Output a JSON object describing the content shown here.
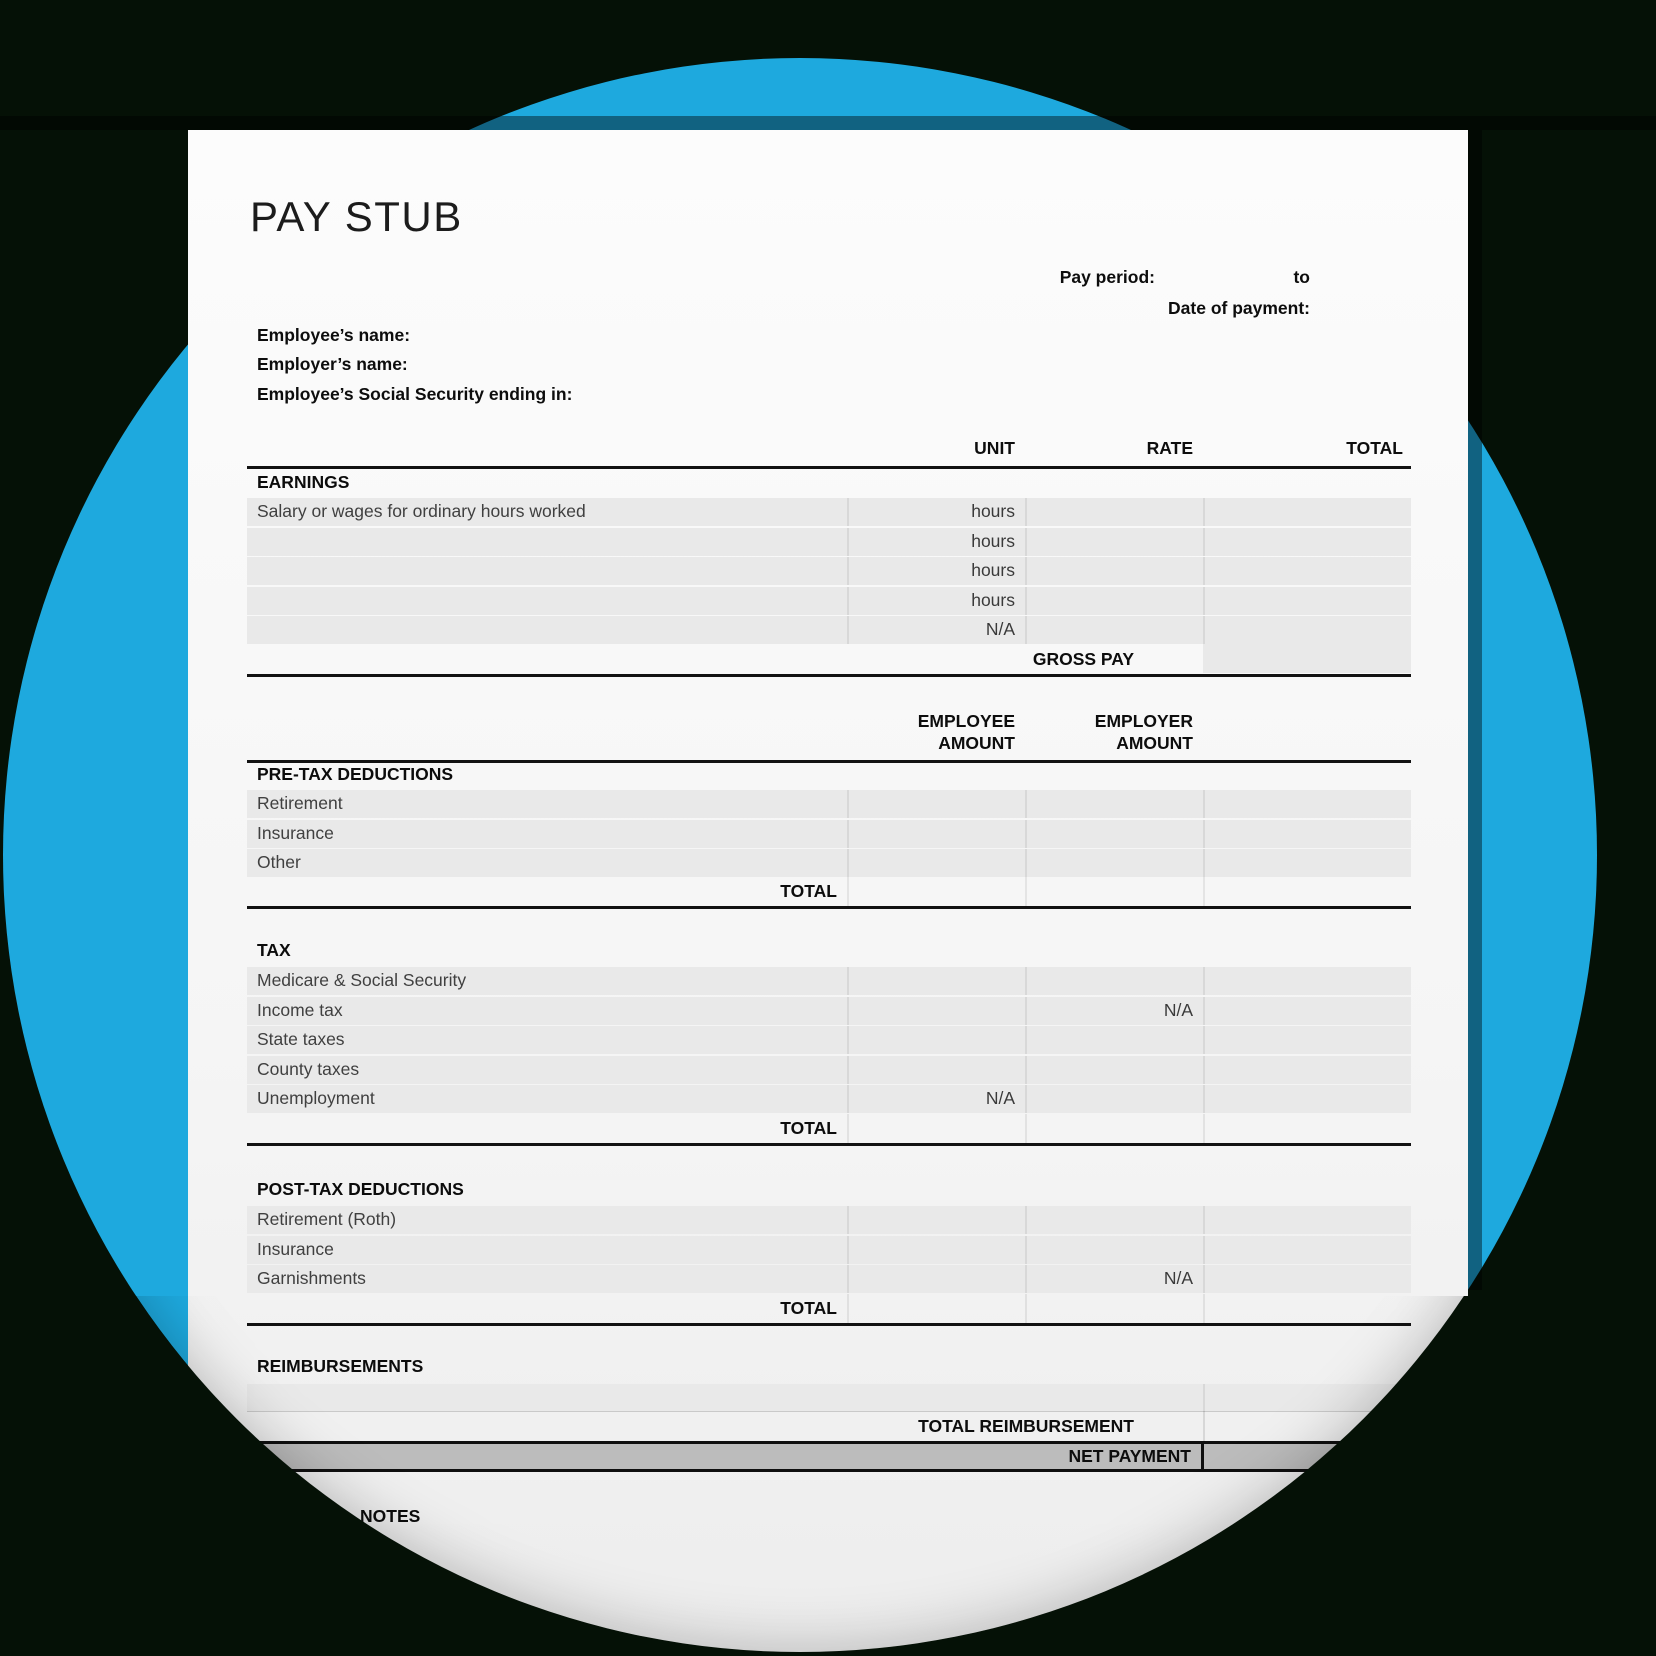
{
  "page": {
    "title": "PAY STUB"
  },
  "meta": {
    "pay_period_label": "Pay period:",
    "to_label": "to",
    "date_of_payment_label": "Date of payment:"
  },
  "identity": [
    "Employee’s name:",
    "Employer’s name:",
    "Employee’s Social Security ending in:"
  ],
  "columns": {
    "unit": "UNIT",
    "rate": "RATE",
    "total": "TOTAL"
  },
  "amount_columns": {
    "employee": [
      "EMPLOYEE",
      "AMOUNT"
    ],
    "employer": [
      "EMPLOYER",
      "AMOUNT"
    ]
  },
  "na_text": "N/A",
  "earnings": {
    "header": "EARNINGS",
    "rows": [
      {
        "label": "Salary or wages for ordinary hours worked",
        "unit": "hours"
      },
      {
        "label": "",
        "unit": "hours"
      },
      {
        "label": "",
        "unit": "hours"
      },
      {
        "label": "",
        "unit": "hours"
      },
      {
        "label": "",
        "unit": "N/A"
      }
    ],
    "gross_pay_label": "GROSS PAY"
  },
  "pre_tax": {
    "header": "PRE-TAX DEDUCTIONS",
    "rows": [
      {
        "label": "Retirement"
      },
      {
        "label": "Insurance"
      },
      {
        "label": "Other"
      }
    ],
    "total_label": "TOTAL"
  },
  "tax": {
    "header": "TAX",
    "rows": [
      {
        "label": "Medicare & Social Security"
      },
      {
        "label": "Income tax",
        "na": "employer"
      },
      {
        "label": "State taxes"
      },
      {
        "label": "County taxes"
      },
      {
        "label": "Unemployment",
        "na": "employee"
      }
    ],
    "total_label": "TOTAL"
  },
  "post_tax": {
    "header": "POST-TAX DEDUCTIONS",
    "rows": [
      {
        "label": "Retirement (Roth)"
      },
      {
        "label": "Insurance"
      },
      {
        "label": "Garnishments",
        "na": "employer"
      }
    ],
    "total_label": "TOTAL"
  },
  "reimbursements": {
    "header": "REIMBURSEMENTS",
    "total_label": "TOTAL REIMBURSEMENT",
    "net_payment_label": "NET PAYMENT"
  },
  "notes_label": "NOTES",
  "colors": {
    "accent_blue": "#1ea9de",
    "background_dark": "#051106",
    "page_white": "#f7f7f7",
    "row_gray": "#e9e9e9",
    "net_band_gray": "#bcbcbc",
    "line_black": "#121212"
  }
}
